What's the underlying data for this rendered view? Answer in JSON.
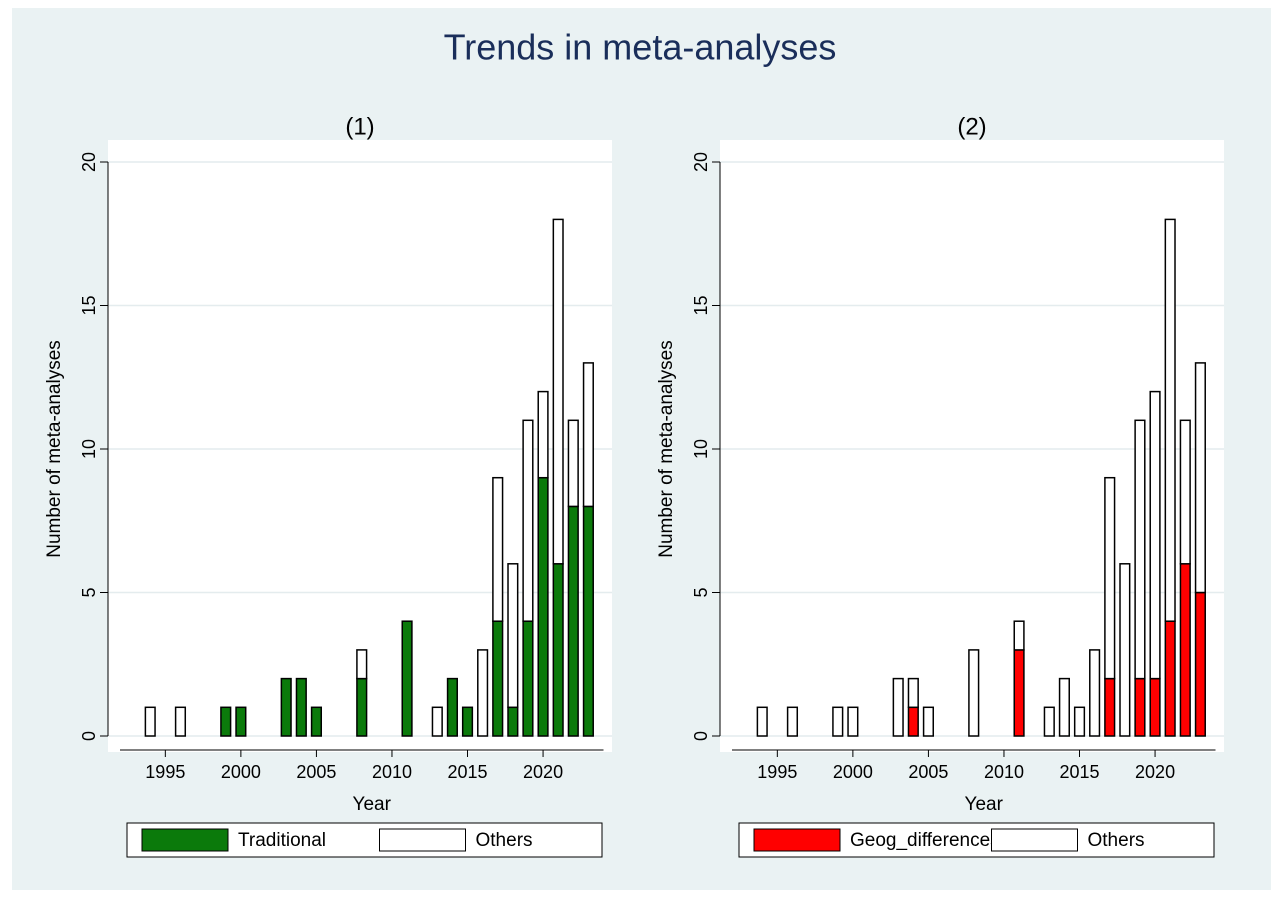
{
  "title": "Trends in meta-analyses",
  "chart_data": [
    {
      "type": "bar",
      "stacked": true,
      "title": "(1)",
      "xlabel": "Year",
      "ylabel": "Number of meta-analyses",
      "x": [
        1994,
        1996,
        1999,
        2000,
        2003,
        2004,
        2005,
        2008,
        2011,
        2013,
        2014,
        2015,
        2016,
        2017,
        2018,
        2019,
        2020,
        2021,
        2022,
        2023
      ],
      "series": [
        {
          "name": "Traditional",
          "color": "#0b7a0b",
          "values": [
            0,
            0,
            1,
            1,
            2,
            2,
            1,
            2,
            4,
            0,
            2,
            1,
            0,
            4,
            1,
            4,
            9,
            6,
            8,
            8
          ]
        },
        {
          "name": "Others",
          "color": "#ffffff",
          "values": [
            1,
            1,
            0,
            0,
            0,
            0,
            0,
            1,
            0,
            1,
            0,
            0,
            3,
            5,
            5,
            7,
            3,
            12,
            3,
            5
          ]
        }
      ],
      "xlim": [
        1992,
        2024
      ],
      "xticks": [
        1995,
        2000,
        2005,
        2010,
        2015,
        2020
      ],
      "ylim": [
        0,
        20
      ],
      "yticks": [
        0,
        5,
        10,
        15,
        20
      ],
      "grid": true,
      "legend": "bottom"
    },
    {
      "type": "bar",
      "stacked": true,
      "title": "(2)",
      "xlabel": "Year",
      "ylabel": "Number of meta-analyses",
      "x": [
        1994,
        1996,
        1999,
        2000,
        2003,
        2004,
        2005,
        2008,
        2011,
        2013,
        2014,
        2015,
        2016,
        2017,
        2018,
        2019,
        2020,
        2021,
        2022,
        2023
      ],
      "series": [
        {
          "name": "Geog_differences",
          "color": "#ff0000",
          "values": [
            0,
            0,
            0,
            0,
            0,
            1,
            0,
            0,
            3,
            0,
            0,
            0,
            0,
            2,
            0,
            2,
            2,
            4,
            6,
            5
          ]
        },
        {
          "name": "Others",
          "color": "#ffffff",
          "values": [
            1,
            1,
            1,
            1,
            2,
            1,
            1,
            3,
            1,
            1,
            2,
            1,
            3,
            7,
            6,
            9,
            10,
            14,
            5,
            8
          ]
        }
      ],
      "xlim": [
        1992,
        2024
      ],
      "xticks": [
        1995,
        2000,
        2005,
        2010,
        2015,
        2020
      ],
      "ylim": [
        0,
        20
      ],
      "yticks": [
        0,
        5,
        10,
        15,
        20
      ],
      "grid": true,
      "legend": "bottom"
    }
  ]
}
